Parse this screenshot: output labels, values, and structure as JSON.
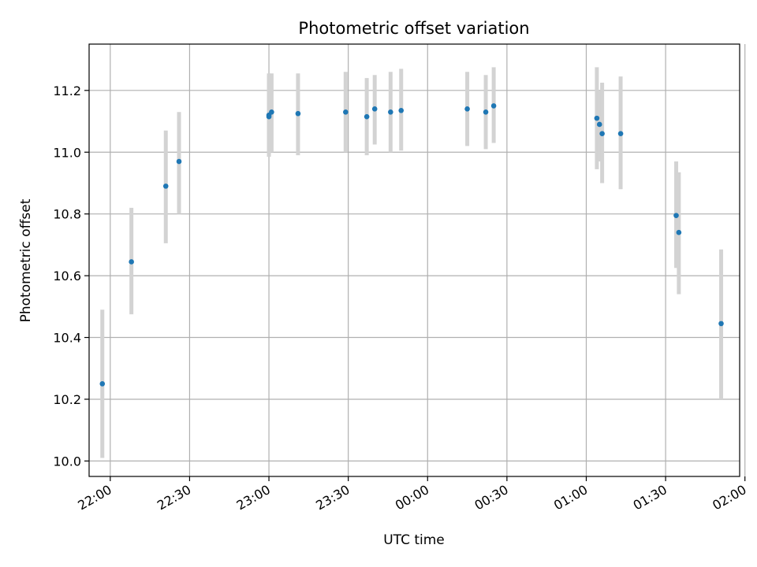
{
  "chart_data": {
    "type": "scatter",
    "title": "Photometric offset variation",
    "xlabel": "UTC time",
    "ylabel": "Photometric offset",
    "grid": true,
    "x_axis_type": "time",
    "xlim": [
      "21:52",
      "01:58"
    ],
    "ylim": [
      9.95,
      11.35
    ],
    "x_ticks": [
      "22:00",
      "22:30",
      "23:00",
      "23:30",
      "00:00",
      "00:30",
      "01:00",
      "01:30",
      "02:00"
    ],
    "y_ticks": [
      "10.0",
      "10.2",
      "10.4",
      "10.6",
      "10.8",
      "11.0",
      "11.2"
    ],
    "marker_color": "#1f77b4",
    "errorbar_color": "#d3d3d3",
    "points": [
      {
        "x": "21:57",
        "y": 10.25,
        "err_low": 10.01,
        "err_high": 10.49
      },
      {
        "x": "22:08",
        "y": 10.645,
        "err_low": 10.475,
        "err_high": 10.82
      },
      {
        "x": "22:21",
        "y": 10.89,
        "err_low": 10.705,
        "err_high": 11.07
      },
      {
        "x": "22:26",
        "y": 10.97,
        "err_low": 10.8,
        "err_high": 11.13
      },
      {
        "x": "23:00",
        "y": 11.115,
        "err_low": 10.985,
        "err_high": 11.25
      },
      {
        "x": "23:00",
        "y": 11.12,
        "err_low": 10.995,
        "err_high": 11.255
      },
      {
        "x": "23:01",
        "y": 11.13,
        "err_low": 11.0,
        "err_high": 11.255
      },
      {
        "x": "23:11",
        "y": 11.125,
        "err_low": 10.99,
        "err_high": 11.255
      },
      {
        "x": "23:29",
        "y": 11.13,
        "err_low": 11.0,
        "err_high": 11.26
      },
      {
        "x": "23:37",
        "y": 11.115,
        "err_low": 10.99,
        "err_high": 11.24
      },
      {
        "x": "23:40",
        "y": 11.14,
        "err_low": 11.025,
        "err_high": 11.25
      },
      {
        "x": "23:46",
        "y": 11.13,
        "err_low": 11.0,
        "err_high": 11.26
      },
      {
        "x": "23:50",
        "y": 11.135,
        "err_low": 11.005,
        "err_high": 11.27
      },
      {
        "x": "00:15",
        "y": 11.14,
        "err_low": 11.02,
        "err_high": 11.26
      },
      {
        "x": "00:22",
        "y": 11.13,
        "err_low": 11.01,
        "err_high": 11.25
      },
      {
        "x": "00:25",
        "y": 11.15,
        "err_low": 11.03,
        "err_high": 11.275
      },
      {
        "x": "01:04",
        "y": 11.11,
        "err_low": 10.945,
        "err_high": 11.275
      },
      {
        "x": "01:05",
        "y": 11.09,
        "err_low": 10.97,
        "err_high": 11.2
      },
      {
        "x": "01:06",
        "y": 11.06,
        "err_low": 10.9,
        "err_high": 11.225
      },
      {
        "x": "01:13",
        "y": 11.06,
        "err_low": 10.88,
        "err_high": 11.245
      },
      {
        "x": "01:34",
        "y": 10.795,
        "err_low": 10.625,
        "err_high": 10.97
      },
      {
        "x": "01:35",
        "y": 10.74,
        "err_low": 10.54,
        "err_high": 10.935
      },
      {
        "x": "01:51",
        "y": 10.445,
        "err_low": 10.2,
        "err_high": 10.685
      }
    ]
  }
}
